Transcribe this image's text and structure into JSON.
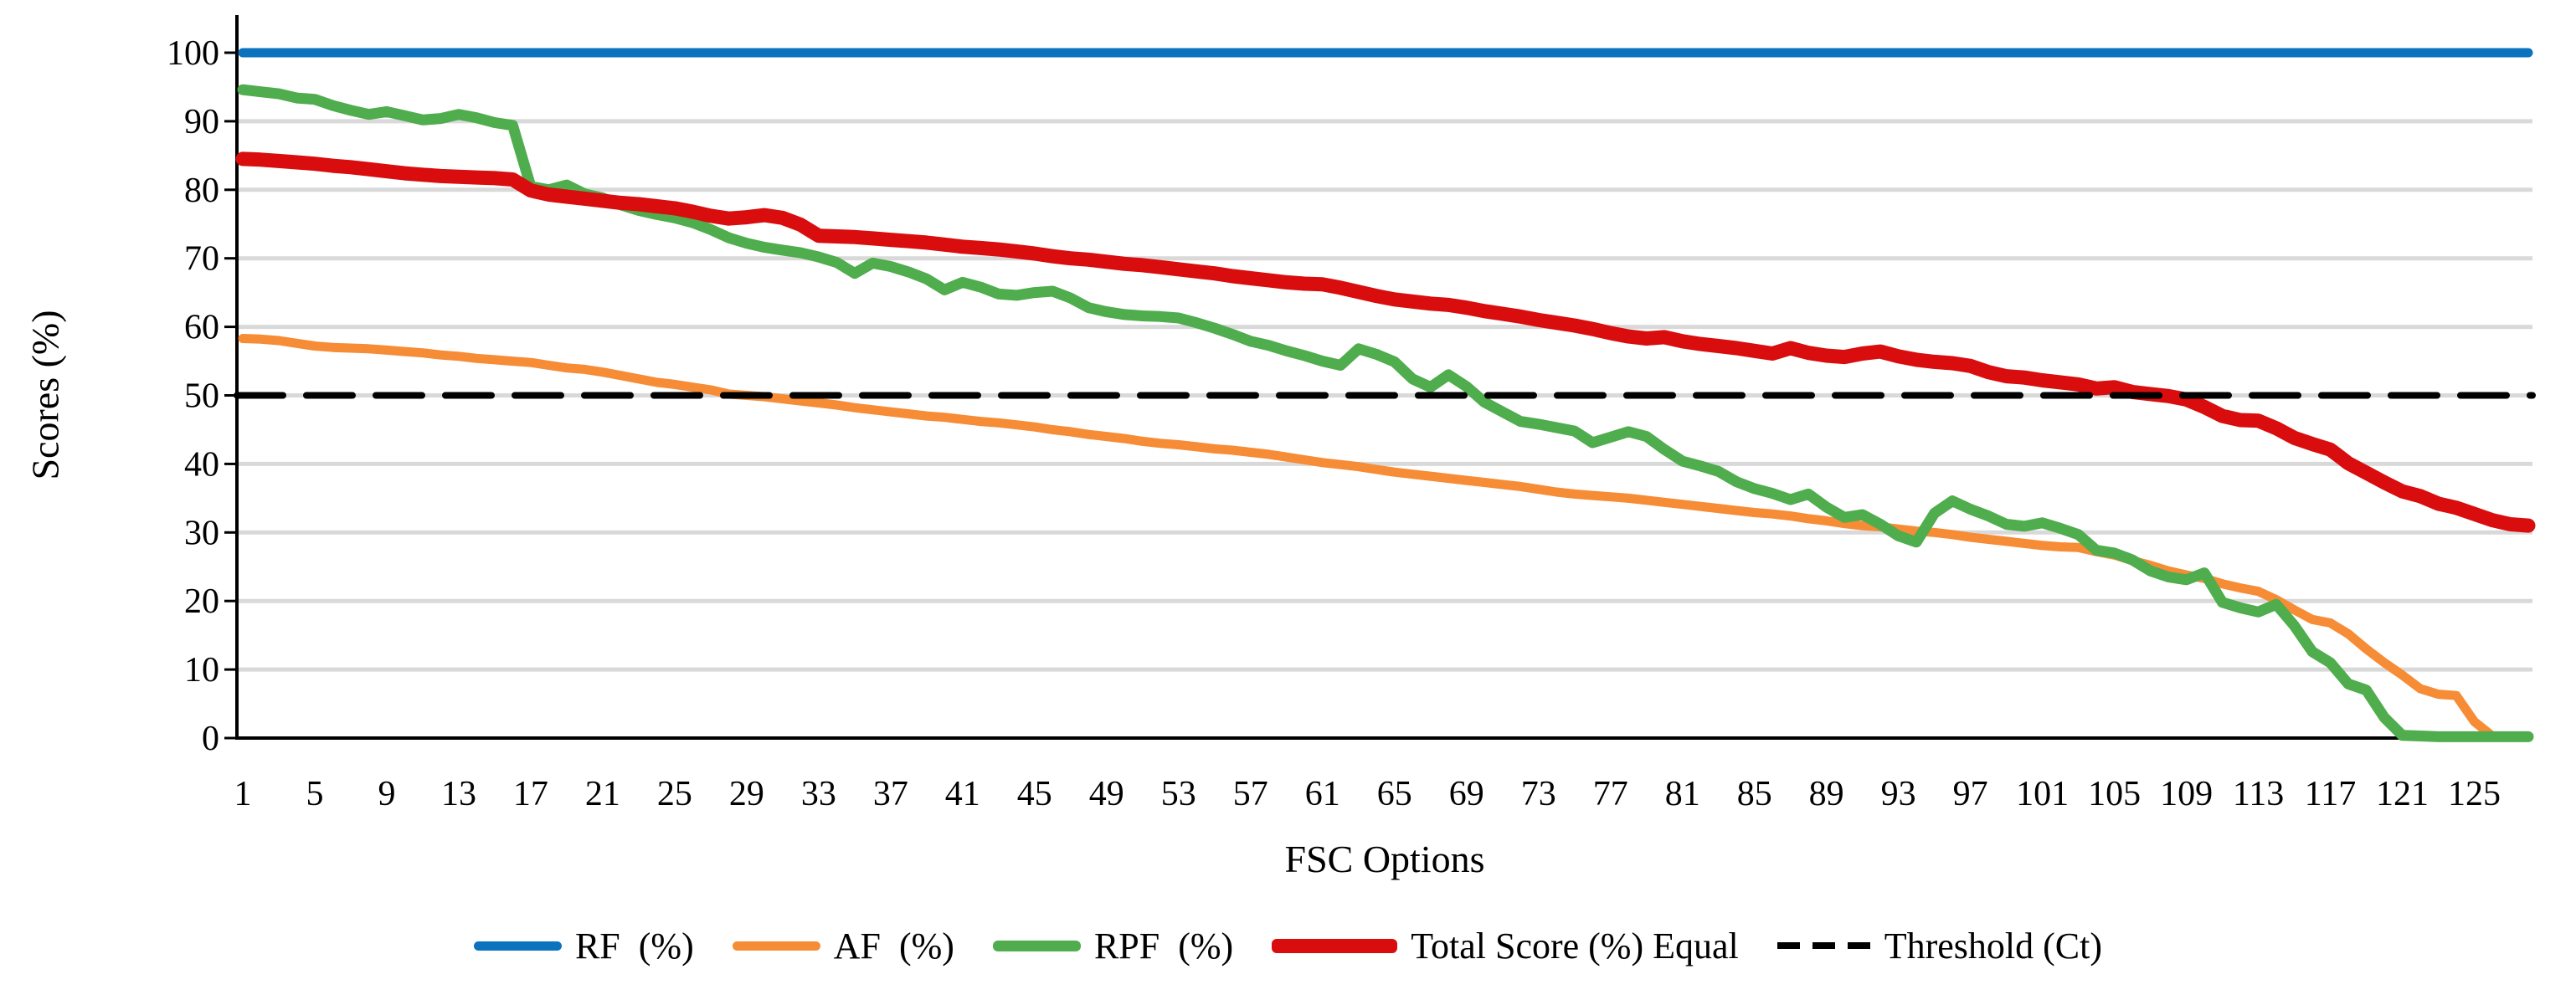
{
  "chart_data": {
    "type": "line",
    "title": "",
    "xlabel": "FSC Options",
    "ylabel": "Scores (%)",
    "n_points": 128,
    "x_range": [
      1,
      128
    ],
    "ylim": [
      0,
      100
    ],
    "y_ticks": [
      0,
      10,
      20,
      30,
      40,
      50,
      60,
      70,
      80,
      90,
      100
    ],
    "x_tick_labels": [
      1,
      5,
      9,
      13,
      17,
      21,
      25,
      29,
      33,
      37,
      41,
      45,
      49,
      53,
      57,
      61,
      65,
      69,
      73,
      77,
      81,
      85,
      89,
      93,
      97,
      101,
      105,
      109,
      113,
      117,
      121,
      125
    ],
    "grid": "horizontal",
    "legend_position": "bottom",
    "colors": {
      "grid": "#D9D9D9",
      "axis": "#000000",
      "rf": "#0B72BE",
      "af": "#F68C36",
      "rpf": "#4FAD4D",
      "total": "#D90D0D",
      "threshold": "#000000"
    },
    "series": [
      {
        "id": "rf",
        "name": "RF  (%)",
        "color": "#0B72BE",
        "width": 11,
        "dash": null,
        "constant": 100
      },
      {
        "id": "af",
        "name": "AF  (%)",
        "color": "#F68C36",
        "width": 11,
        "dash": null,
        "values": [
          58.3,
          58.2,
          58.0,
          57.6,
          57.2,
          57.0,
          56.9,
          56.8,
          56.6,
          56.4,
          56.2,
          55.9,
          55.7,
          55.4,
          55.2,
          55.0,
          54.8,
          54.4,
          54.0,
          53.8,
          53.4,
          52.9,
          52.4,
          51.9,
          51.6,
          51.2,
          50.8,
          50.2,
          50.0,
          49.8,
          49.5,
          49.2,
          48.9,
          48.6,
          48.2,
          47.9,
          47.6,
          47.3,
          47.0,
          46.8,
          46.5,
          46.2,
          46.0,
          45.7,
          45.4,
          45.0,
          44.7,
          44.3,
          44.0,
          43.7,
          43.3,
          43.0,
          42.8,
          42.5,
          42.2,
          42.0,
          41.7,
          41.4,
          41.0,
          40.6,
          40.2,
          39.9,
          39.6,
          39.2,
          38.8,
          38.5,
          38.2,
          37.9,
          37.6,
          37.3,
          37.0,
          36.7,
          36.3,
          35.9,
          35.6,
          35.4,
          35.2,
          35.0,
          34.7,
          34.4,
          34.1,
          33.8,
          33.5,
          33.2,
          32.9,
          32.7,
          32.4,
          32.0,
          31.7,
          31.3,
          31.0,
          30.8,
          30.5,
          30.2,
          30.0,
          29.7,
          29.3,
          29.0,
          28.7,
          28.4,
          28.1,
          27.9,
          27.8,
          27.2,
          26.7,
          25.9,
          25.2,
          24.4,
          23.8,
          23.3,
          22.5,
          21.9,
          21.4,
          20.2,
          18.7,
          17.3,
          16.8,
          15.2,
          13.0,
          11.0,
          9.2,
          7.2,
          6.4,
          6.2,
          2.4,
          0.3,
          0.2,
          0.2
        ]
      },
      {
        "id": "rpf",
        "name": "RPF  (%)",
        "color": "#4FAD4D",
        "width": 13,
        "dash": null,
        "values": [
          94.6,
          94.3,
          94.0,
          93.4,
          93.2,
          92.3,
          91.6,
          91.0,
          91.4,
          90.8,
          90.2,
          90.4,
          91.0,
          90.5,
          89.8,
          89.4,
          80.5,
          80.0,
          80.7,
          79.4,
          78.8,
          77.8,
          77.0,
          76.4,
          75.9,
          75.2,
          74.2,
          73.0,
          72.2,
          71.6,
          71.2,
          70.8,
          70.2,
          69.4,
          67.8,
          69.3,
          68.8,
          68.0,
          67.0,
          65.4,
          66.5,
          65.8,
          64.8,
          64.6,
          65.0,
          65.2,
          64.2,
          62.8,
          62.2,
          61.8,
          61.6,
          61.5,
          61.3,
          60.6,
          59.8,
          58.9,
          57.9,
          57.3,
          56.5,
          55.8,
          55.0,
          54.4,
          56.8,
          56.0,
          54.9,
          52.4,
          51.2,
          53.0,
          51.3,
          49.0,
          47.6,
          46.2,
          45.8,
          45.3,
          44.8,
          43.1,
          43.9,
          44.7,
          44.0,
          42.1,
          40.4,
          39.7,
          38.9,
          37.4,
          36.4,
          35.7,
          34.8,
          35.6,
          33.7,
          32.2,
          32.6,
          31.2,
          29.5,
          28.6,
          32.8,
          34.6,
          33.4,
          32.4,
          31.2,
          30.9,
          31.4,
          30.6,
          29.7,
          27.4,
          27.0,
          26.0,
          24.4,
          23.5,
          23.1,
          24.1,
          19.8,
          19.0,
          18.4,
          19.5,
          16.4,
          12.6,
          11.0,
          7.9,
          7.0,
          3.0,
          0.4,
          0.3,
          0.2,
          0.2,
          0.2,
          0.2,
          0.2,
          0.2
        ]
      },
      {
        "id": "total",
        "name": "Total Score (%) Equal",
        "color": "#D90D0D",
        "width": 17,
        "dash": null,
        "values": [
          84.5,
          84.4,
          84.2,
          84.0,
          83.8,
          83.5,
          83.3,
          83.0,
          82.7,
          82.4,
          82.2,
          82.0,
          81.9,
          81.8,
          81.7,
          81.5,
          79.9,
          79.3,
          79.0,
          78.7,
          78.4,
          78.1,
          77.9,
          77.6,
          77.3,
          76.8,
          76.2,
          75.8,
          76.0,
          76.3,
          75.9,
          74.9,
          73.3,
          73.2,
          73.1,
          72.9,
          72.7,
          72.5,
          72.3,
          72.0,
          71.7,
          71.5,
          71.3,
          71.0,
          70.7,
          70.3,
          70.0,
          69.8,
          69.5,
          69.2,
          69.0,
          68.7,
          68.4,
          68.1,
          67.8,
          67.4,
          67.1,
          66.8,
          66.5,
          66.3,
          66.2,
          65.7,
          65.1,
          64.5,
          64.0,
          63.7,
          63.4,
          63.2,
          62.8,
          62.3,
          61.9,
          61.5,
          61.0,
          60.6,
          60.2,
          59.7,
          59.1,
          58.6,
          58.3,
          58.5,
          57.9,
          57.5,
          57.2,
          56.9,
          56.5,
          56.1,
          56.9,
          56.2,
          55.8,
          55.6,
          56.1,
          56.4,
          55.7,
          55.2,
          54.9,
          54.7,
          54.3,
          53.4,
          52.8,
          52.6,
          52.2,
          51.9,
          51.6,
          51.0,
          51.2,
          50.5,
          50.2,
          49.9,
          49.4,
          48.3,
          47.0,
          46.4,
          46.3,
          45.2,
          43.8,
          42.9,
          42.1,
          40.1,
          38.7,
          37.3,
          36.0,
          35.3,
          34.2,
          33.6,
          32.7,
          31.8,
          31.2,
          31.0
        ]
      },
      {
        "id": "threshold",
        "name": "Threshold (Ct)",
        "color": "#000000",
        "width": 8,
        "dash": "55 28",
        "full_width": true,
        "constant": 50
      }
    ]
  }
}
